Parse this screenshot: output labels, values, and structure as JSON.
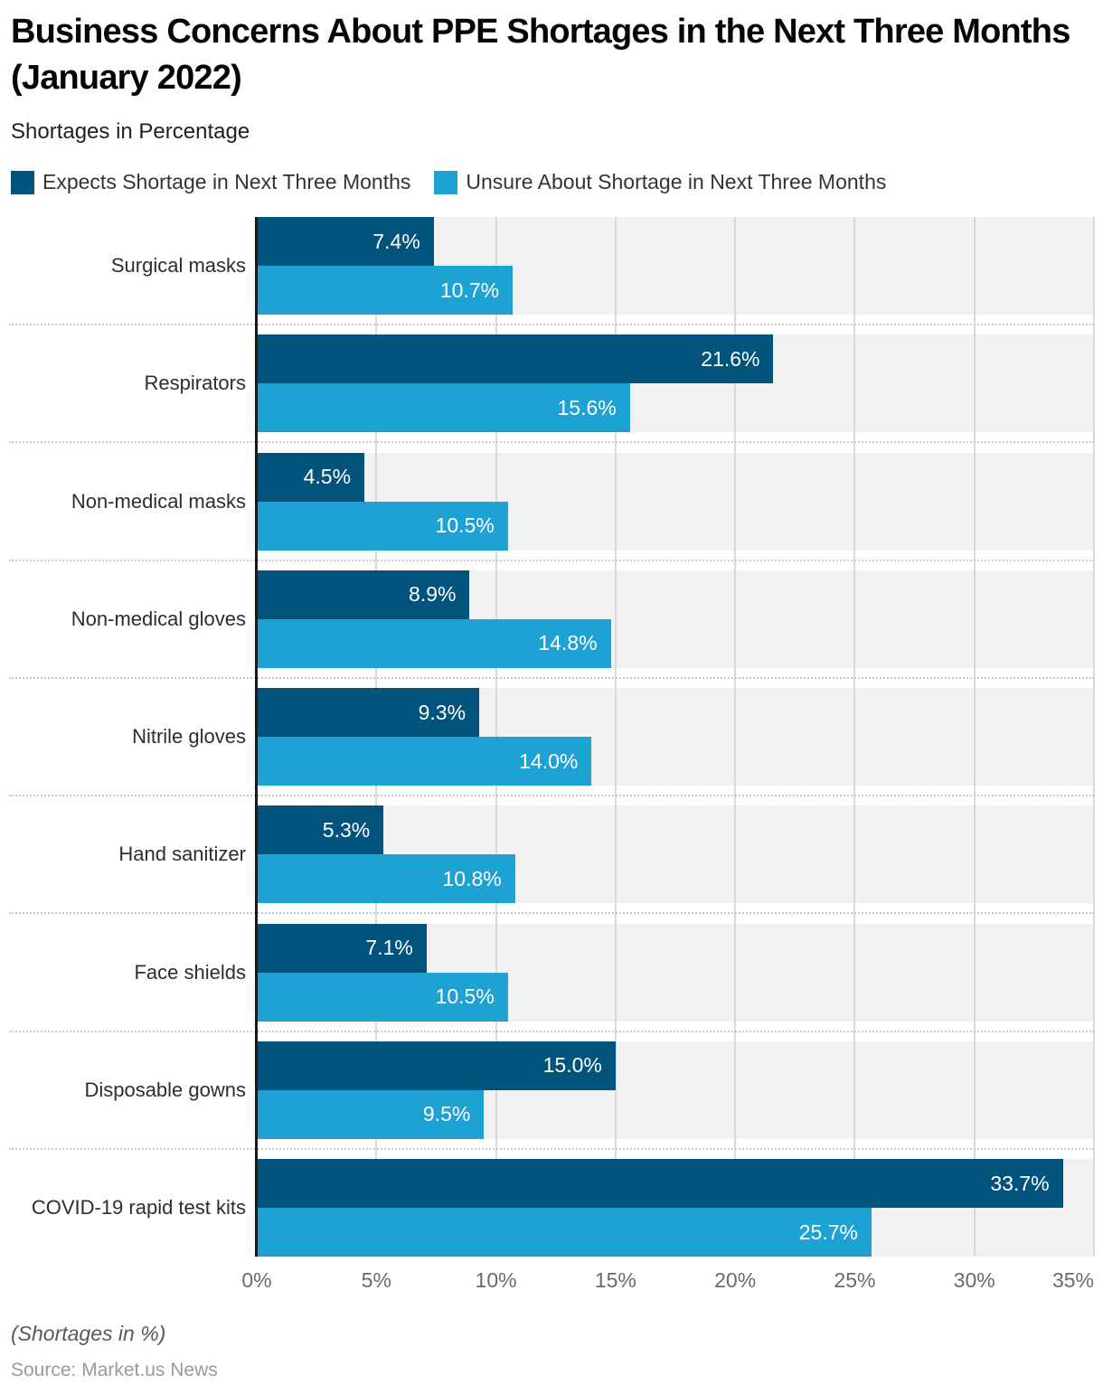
{
  "page": {
    "title": "Business Concerns About PPE Shortages in the Next Three Months (January 2022)",
    "subtitle": "Shortages in Percentage",
    "footer_note": "(Shortages in %)",
    "source": "Source: Market.us News"
  },
  "legend": {
    "items": [
      {
        "label": "Expects Shortage in Next Three Months",
        "color": "#02547D"
      },
      {
        "label": "Unsure About Shortage in Next Three Months",
        "color": "#1EA2D4"
      }
    ]
  },
  "chart_data": {
    "type": "bar",
    "orientation": "horizontal",
    "title": "Business Concerns About PPE Shortages in the Next Three Months (January 2022)",
    "subtitle": "Shortages in Percentage",
    "categories": [
      "Surgical masks",
      "Respirators",
      "Non-medical masks",
      "Non-medical gloves",
      "Nitrile gloves",
      "Hand sanitizer",
      "Face shields",
      "Disposable gowns",
      "COVID-19 rapid test kits"
    ],
    "series": [
      {
        "name": "Expects Shortage in Next Three Months",
        "color": "#02547D",
        "values": [
          7.4,
          21.6,
          4.5,
          8.9,
          9.3,
          5.3,
          7.1,
          15.0,
          33.7
        ]
      },
      {
        "name": "Unsure About Shortage in Next Three Months",
        "color": "#1EA2D4",
        "values": [
          10.7,
          15.6,
          10.5,
          14.8,
          14.0,
          10.8,
          10.5,
          9.5,
          25.7
        ]
      }
    ],
    "xlabel": "",
    "ylabel": "",
    "xlim": [
      0,
      35
    ],
    "x_ticks": [
      "0%",
      "5%",
      "10%",
      "15%",
      "20%",
      "25%",
      "30%",
      "35%"
    ],
    "tick_step": 5,
    "value_suffix": "%",
    "value_decimals": 1,
    "grid": true,
    "legend_position": "top",
    "colors": {
      "row_band": "#F1F1F1",
      "gridline": "#D9D9D9",
      "axis_line": "#1A1A1A",
      "separator": "#CBCBCB",
      "value_label": "#FFFFFF"
    }
  }
}
